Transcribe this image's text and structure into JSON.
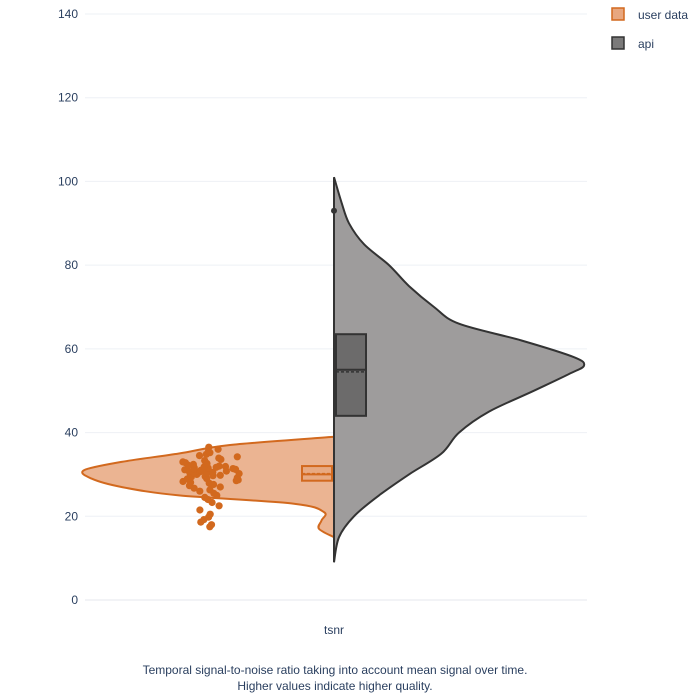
{
  "chart_data": {
    "type": "violin",
    "categories": [
      "tsnr"
    ],
    "ylim": [
      0,
      140
    ],
    "yticks": [
      0,
      20,
      40,
      60,
      80,
      100,
      120,
      140
    ],
    "grid": true,
    "legend_position": "top-right",
    "series": [
      {
        "name": "user data",
        "side": "negative",
        "color": "#e07b39",
        "fill": "#e8a77f",
        "line_color": "#d2691e",
        "box": {
          "q1": 28.5,
          "median": 30.0,
          "mean": 30.2,
          "q3": 32.0,
          "whisker_low": 23.0,
          "whisker_high": 37.0
        },
        "density": [
          [
            15,
            0.0
          ],
          [
            17,
            0.06
          ],
          [
            19,
            0.05
          ],
          [
            21,
            0.04
          ],
          [
            23,
            0.16
          ],
          [
            25,
            0.62
          ],
          [
            27,
            0.85
          ],
          [
            29,
            0.97
          ],
          [
            31,
            1.0
          ],
          [
            33,
            0.85
          ],
          [
            35,
            0.62
          ],
          [
            37,
            0.42
          ],
          [
            39,
            0.0
          ]
        ],
        "points": [
          17.5,
          18.0,
          18.6,
          19.2,
          19.8,
          20.5,
          21.5,
          22.5,
          23.3,
          24.0,
          24.5,
          25.0,
          25.5,
          26.0,
          26.3,
          26.7,
          27.0,
          27.3,
          27.6,
          27.9,
          28.1,
          28.3,
          28.5,
          28.7,
          28.9,
          29.0,
          29.2,
          29.4,
          29.5,
          29.7,
          29.8,
          30.0,
          30.1,
          30.2,
          30.3,
          30.4,
          30.5,
          30.6,
          30.7,
          30.8,
          30.9,
          31.0,
          31.1,
          31.2,
          31.3,
          31.4,
          31.5,
          31.6,
          31.7,
          31.8,
          31.9,
          32.0,
          32.2,
          32.4,
          32.6,
          32.8,
          33.0,
          33.3,
          33.6,
          33.9,
          34.2,
          34.5,
          34.8,
          35.2,
          35.6,
          36.0,
          36.5
        ],
        "legend_label": "user data"
      },
      {
        "name": "api",
        "side": "positive",
        "color": "#555555",
        "fill": "#999797",
        "line_color": "#333333",
        "box": {
          "q1": 44.0,
          "median": 55.0,
          "mean": 54.5,
          "q3": 63.5,
          "whisker_low": 16.0,
          "whisker_high": 91.0
        },
        "outliers": [
          93.0
        ],
        "density": [
          [
            9,
            0.0
          ],
          [
            15,
            0.02
          ],
          [
            20,
            0.08
          ],
          [
            25,
            0.18
          ],
          [
            30,
            0.3
          ],
          [
            35,
            0.43
          ],
          [
            40,
            0.5
          ],
          [
            45,
            0.62
          ],
          [
            50,
            0.8
          ],
          [
            54,
            0.94
          ],
          [
            56,
            1.0
          ],
          [
            58,
            0.96
          ],
          [
            62,
            0.75
          ],
          [
            66,
            0.5
          ],
          [
            70,
            0.4
          ],
          [
            75,
            0.3
          ],
          [
            80,
            0.22
          ],
          [
            85,
            0.12
          ],
          [
            90,
            0.06
          ],
          [
            95,
            0.03
          ],
          [
            101,
            0.0
          ]
        ],
        "legend_label": "api"
      }
    ],
    "xtick_label": "tsnr",
    "caption_line1": "Temporal signal-to-noise ratio taking into account mean signal over time.",
    "caption_line2": "Higher values indicate higher quality."
  }
}
